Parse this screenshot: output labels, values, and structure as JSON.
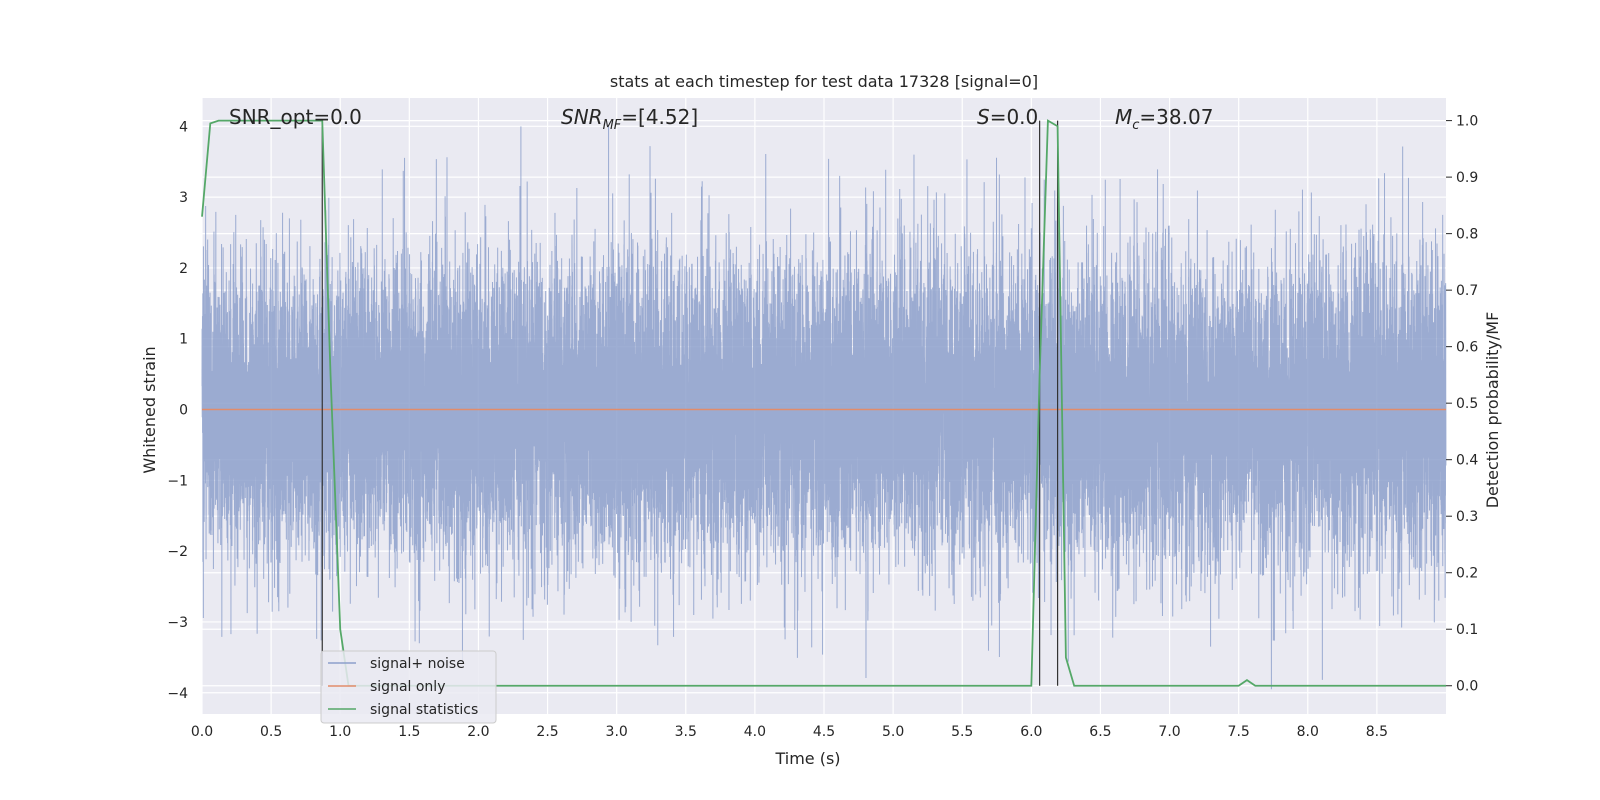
{
  "chart_data": {
    "type": "line",
    "title": "stats at each timestep for test data 17328 [signal=0]",
    "xlabel": "Time (s)",
    "ylabel": "Whitened strain",
    "y2label": "Detection probability/MF",
    "xlim": [
      0,
      9.0
    ],
    "ylim": [
      -4.3,
      4.4
    ],
    "y2lim": [
      -0.05,
      1.04
    ],
    "xticks": [
      "0.0",
      "0.5",
      "1.0",
      "1.5",
      "2.0",
      "2.5",
      "3.0",
      "3.5",
      "4.0",
      "4.5",
      "5.0",
      "5.5",
      "6.0",
      "6.5",
      "7.0",
      "7.5",
      "8.0",
      "8.5"
    ],
    "xtick_values": [
      0,
      0.5,
      1,
      1.5,
      2,
      2.5,
      3,
      3.5,
      4,
      4.5,
      5,
      5.5,
      6,
      6.5,
      7,
      7.5,
      8,
      8.5
    ],
    "yticks": [
      "4",
      "3",
      "2",
      "1",
      "0",
      "−1",
      "−2",
      "−3",
      "−4"
    ],
    "ytick_values": [
      4,
      3,
      2,
      1,
      0,
      -1,
      -2,
      -3,
      -4
    ],
    "y2ticks": [
      "1.0",
      "0.9",
      "0.8",
      "0.7",
      "0.6",
      "0.5",
      "0.4",
      "0.3",
      "0.2",
      "0.1",
      "0.0"
    ],
    "y2tick_values": [
      1.0,
      0.9,
      0.8,
      0.7,
      0.6,
      0.5,
      0.4,
      0.3,
      0.2,
      0.1,
      0.0
    ],
    "grid": true,
    "legend_position": "lower-left",
    "annotations": {
      "snr_opt": "SNR_opt=0.0",
      "snr_mf_prefix": "SNR",
      "snr_mf_sub": "MF",
      "snr_mf_value": "=[4.52]",
      "s_prefix": "S",
      "s_value": "=0.0",
      "mc_prefix": "M",
      "mc_sub": "c",
      "mc_value": "=38.07"
    },
    "vertical_markers_x": [
      0.87,
      6.06,
      6.19
    ],
    "series": [
      {
        "name": "signal+ noise",
        "color": "#8da0cb",
        "amplitude": {
          "sigma": 1.05,
          "sample_rate": 2048,
          "duration": 9.0,
          "min": -3.95,
          "max": 4.0
        }
      },
      {
        "name": "signal only",
        "color": "#e28c6b",
        "values": [
          [
            0,
            0
          ],
          [
            9.0,
            0
          ]
        ]
      },
      {
        "name": "signal statistics",
        "color": "#55a868",
        "axis": "right",
        "points": [
          [
            0.0,
            0.83
          ],
          [
            0.06,
            0.995
          ],
          [
            0.12,
            1.0
          ],
          [
            0.25,
            1.0
          ],
          [
            0.5,
            1.0
          ],
          [
            0.75,
            1.0
          ],
          [
            0.87,
            1.0
          ],
          [
            0.93,
            0.55
          ],
          [
            1.0,
            0.1
          ],
          [
            1.06,
            0.0
          ],
          [
            2.0,
            0.0
          ],
          [
            3.0,
            0.0
          ],
          [
            4.0,
            0.0
          ],
          [
            5.0,
            0.0
          ],
          [
            6.0,
            0.0
          ],
          [
            6.06,
            0.55
          ],
          [
            6.12,
            1.0
          ],
          [
            6.19,
            0.99
          ],
          [
            6.25,
            0.05
          ],
          [
            6.31,
            0.0
          ],
          [
            7.0,
            0.0
          ],
          [
            7.5,
            0.0
          ],
          [
            7.56,
            0.01
          ],
          [
            7.62,
            0.0
          ],
          [
            8.0,
            0.0
          ],
          [
            9.0,
            0.0
          ]
        ]
      }
    ]
  }
}
